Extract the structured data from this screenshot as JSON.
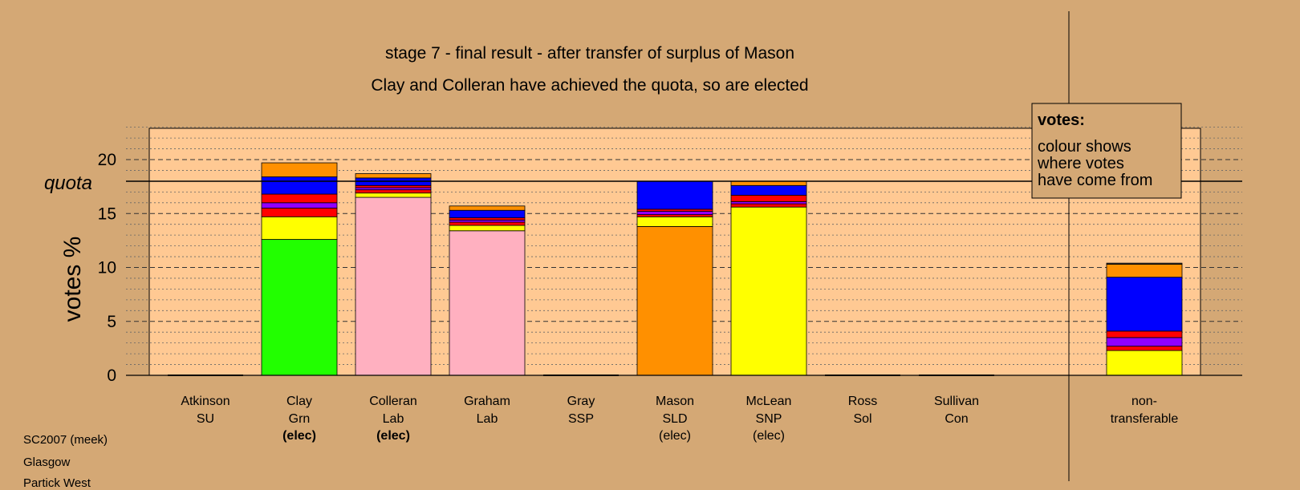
{
  "chart_data": {
    "type": "bar",
    "stacked": true,
    "title": "stage 7 - final result - after transfer of surplus of Mason",
    "subtitle": "Clay and Colleran have achieved the quota, so are elected",
    "ylabel": "votes %",
    "ylim": [
      0,
      23
    ],
    "yticks": [
      0,
      5,
      10,
      15,
      20
    ],
    "quota": 18.0,
    "quota_label": "quota",
    "legend": {
      "title": "votes:",
      "lines": [
        "colour shows",
        "where votes",
        "have come from"
      ]
    },
    "categories": [
      {
        "name": "Atkinson",
        "party": "SU",
        "status": ""
      },
      {
        "name": "Clay",
        "party": "Grn",
        "status": "(elec)"
      },
      {
        "name": "Colleran",
        "party": "Lab",
        "status": "(elec)"
      },
      {
        "name": "Graham",
        "party": "Lab",
        "status": ""
      },
      {
        "name": "Gray",
        "party": "SSP",
        "status": ""
      },
      {
        "name": "Mason",
        "party": "SLD",
        "status": "(elec)"
      },
      {
        "name": "McLean",
        "party": "SNP",
        "status": "(elec)"
      },
      {
        "name": "Ross",
        "party": "Sol",
        "status": ""
      },
      {
        "name": "Sullivan",
        "party": "Con",
        "status": ""
      },
      {
        "name": "non-",
        "party": "transferable",
        "status": ""
      }
    ],
    "colors": {
      "green": "#22ff00",
      "pink": "#ffb0c0",
      "orange": "#ff9000",
      "yellow": "#ffff00",
      "red": "#ff0000",
      "purple": "#9000ff",
      "blue": "#0000ff",
      "grey": "#444444"
    },
    "stacks": [
      [],
      [
        {
          "color": "green",
          "value": 12.6
        },
        {
          "color": "yellow",
          "value": 2.1
        },
        {
          "color": "red",
          "value": 0.8
        },
        {
          "color": "purple",
          "value": 0.5
        },
        {
          "color": "red",
          "value": 0.8
        },
        {
          "color": "blue",
          "value": 1.6
        },
        {
          "color": "orange",
          "value": 1.3
        }
      ],
      [
        {
          "color": "pink",
          "value": 16.5
        },
        {
          "color": "yellow",
          "value": 0.4
        },
        {
          "color": "red",
          "value": 0.3
        },
        {
          "color": "purple",
          "value": 0.2
        },
        {
          "color": "red",
          "value": 0.2
        },
        {
          "color": "blue",
          "value": 0.7
        },
        {
          "color": "orange",
          "value": 0.4
        }
      ],
      [
        {
          "color": "pink",
          "value": 13.4
        },
        {
          "color": "yellow",
          "value": 0.5
        },
        {
          "color": "red",
          "value": 0.3
        },
        {
          "color": "purple",
          "value": 0.2
        },
        {
          "color": "red",
          "value": 0.2
        },
        {
          "color": "blue",
          "value": 0.7
        },
        {
          "color": "orange",
          "value": 0.4
        }
      ],
      [],
      [
        {
          "color": "orange",
          "value": 13.8
        },
        {
          "color": "yellow",
          "value": 0.9
        },
        {
          "color": "red",
          "value": 0.2
        },
        {
          "color": "purple",
          "value": 0.3
        },
        {
          "color": "red",
          "value": 0.2
        },
        {
          "color": "blue",
          "value": 2.6
        }
      ],
      [
        {
          "color": "yellow",
          "value": 15.6
        },
        {
          "color": "red",
          "value": 0.3
        },
        {
          "color": "purple",
          "value": 0.2
        },
        {
          "color": "red",
          "value": 0.6
        },
        {
          "color": "blue",
          "value": 0.9
        },
        {
          "color": "orange",
          "value": 0.4
        }
      ],
      [],
      [],
      [
        {
          "color": "yellow",
          "value": 2.3
        },
        {
          "color": "red",
          "value": 0.4
        },
        {
          "color": "purple",
          "value": 0.8
        },
        {
          "color": "red",
          "value": 0.6
        },
        {
          "color": "blue",
          "value": 5.0
        },
        {
          "color": "orange",
          "value": 1.2
        },
        {
          "color": "grey",
          "value": 0.1
        }
      ]
    ]
  },
  "corner_lines": [
    "SC2007 (meek)",
    "Glasgow",
    "Partick West"
  ]
}
